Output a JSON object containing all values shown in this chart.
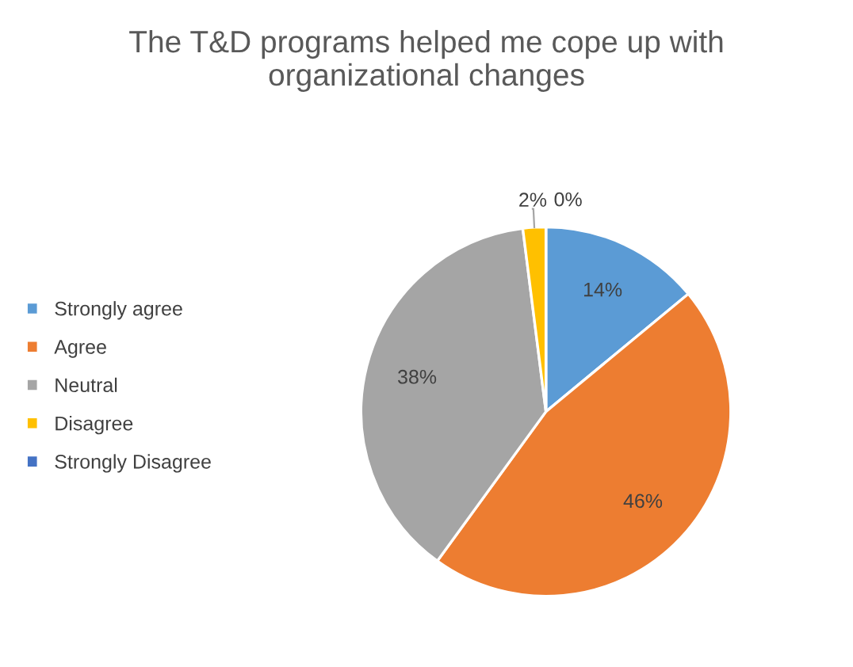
{
  "chart_data": {
    "type": "pie",
    "title": "The T&D programs helped me cope up with\norganizational changes",
    "categories": [
      "Strongly agree",
      "Agree",
      "Neutral",
      "Disagree",
      "Strongly Disagree"
    ],
    "values": [
      14,
      46,
      38,
      2,
      0
    ],
    "colors": [
      "#5b9bd5",
      "#ed7d31",
      "#a5a5a5",
      "#ffc000",
      "#4472c4"
    ],
    "value_labels": [
      "14%",
      "46%",
      "38%",
      "2%",
      "0%"
    ],
    "legend": "left"
  }
}
